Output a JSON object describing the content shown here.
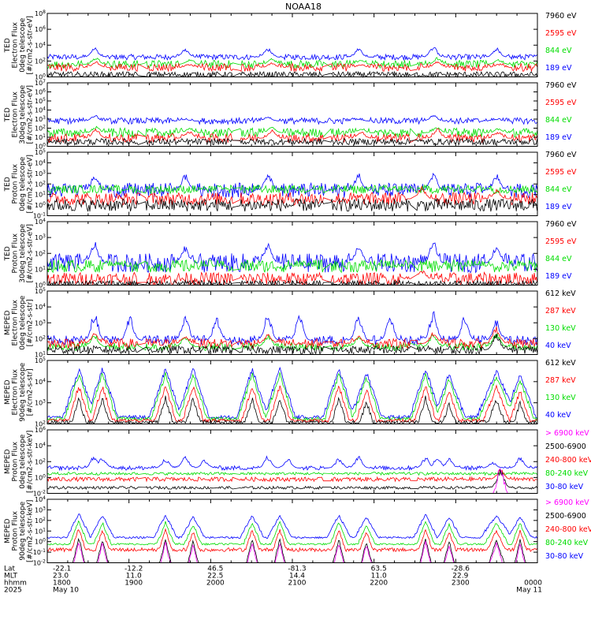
{
  "title": "NOAA18",
  "series_colors": {
    "blue": "#0000ff",
    "red": "#ff0000",
    "green": "#00dd00",
    "black": "#000000",
    "magenta": "#ff00ff"
  },
  "chart_data": [
    {
      "type": "line",
      "ylabel": [
        "TED",
        "Electron Flux",
        "0deg telescope",
        "[#/cm2-s-str-eV]"
      ],
      "yticks": [
        "10^0",
        "10^2",
        "10^4",
        "10^6",
        "10^8"
      ],
      "ylim": [
        0,
        8
      ],
      "legend": [
        {
          "label": "7960 eV",
          "color": "black"
        },
        {
          "label": "2595 eV",
          "color": "red"
        },
        {
          "label": "844 eV",
          "color": "green"
        },
        {
          "label": "189 eV",
          "color": "blue"
        }
      ],
      "series": [
        {
          "color": "blue",
          "base": 2.5,
          "noise": 0.35,
          "spikes": [
            [
              60,
              3.8
            ],
            [
              175,
              3.6
            ],
            [
              280,
              3.7
            ],
            [
              395,
              3.6
            ],
            [
              490,
              3.9
            ],
            [
              570,
              3.7
            ]
          ]
        },
        {
          "color": "green",
          "base": 1.6,
          "noise": 0.5,
          "spikes": [
            [
              62,
              2.5
            ],
            [
              180,
              2.2
            ],
            [
              285,
              2.4
            ],
            [
              398,
              2.2
            ],
            [
              495,
              2.5
            ],
            [
              572,
              2.2
            ]
          ]
        },
        {
          "color": "red",
          "base": 1.2,
          "noise": 0.5,
          "spikes": [
            [
              62,
              2.0
            ],
            [
              180,
              1.6
            ],
            [
              285,
              1.8
            ],
            [
              398,
              1.6
            ],
            [
              495,
              2.0
            ],
            [
              572,
              1.6
            ]
          ]
        },
        {
          "color": "black",
          "base": 0.3,
          "noise": 0.35,
          "spikes": []
        }
      ]
    },
    {
      "type": "line",
      "ylabel": [
        "TED",
        "Electron Flux",
        "30deg telescope",
        "[#/cm2-s-str-eV]"
      ],
      "yticks": [
        "10^0",
        "10^1",
        "10^2",
        "10^3",
        "10^4",
        "10^5",
        "10^6",
        "10^7"
      ],
      "ylim": [
        0,
        7
      ],
      "legend": [
        {
          "label": "7960 eV",
          "color": "black"
        },
        {
          "label": "2595 eV",
          "color": "red"
        },
        {
          "label": "844 eV",
          "color": "green"
        },
        {
          "label": "189 eV",
          "color": "blue"
        }
      ],
      "series": [
        {
          "color": "blue",
          "base": 2.8,
          "noise": 0.35,
          "spikes": [
            [
              60,
              3.5
            ],
            [
              175,
              3.0
            ],
            [
              280,
              3.3
            ],
            [
              395,
              3.0
            ],
            [
              490,
              3.5
            ],
            [
              570,
              3.0
            ]
          ]
        },
        {
          "color": "green",
          "base": 1.5,
          "noise": 0.5,
          "spikes": [
            [
              62,
              2.2
            ],
            [
              180,
              2.0
            ],
            [
              285,
              2.2
            ],
            [
              398,
              2.0
            ],
            [
              495,
              2.2
            ],
            [
              572,
              2.0
            ]
          ]
        },
        {
          "color": "red",
          "base": 0.9,
          "noise": 0.5,
          "spikes": [
            [
              62,
              2.0
            ],
            [
              180,
              1.8
            ],
            [
              285,
              1.9
            ],
            [
              398,
              1.7
            ],
            [
              495,
              2.0
            ],
            [
              572,
              1.7
            ]
          ]
        },
        {
          "color": "black",
          "base": 0.5,
          "noise": 0.35,
          "spikes": []
        }
      ]
    },
    {
      "type": "line",
      "ylabel": [
        "TED",
        "Proton Flux",
        "0deg telescope",
        "[#/cm2-s-str-eV]"
      ],
      "yticks": [
        "10^-1",
        "10^0",
        "10^1",
        "10^2",
        "10^3",
        "10^4",
        "10^5"
      ],
      "ylim": [
        -1,
        5
      ],
      "legend": [
        {
          "label": "7960 eV",
          "color": "black"
        },
        {
          "label": "2595 eV",
          "color": "red"
        },
        {
          "label": "844 eV",
          "color": "green"
        },
        {
          "label": "189 eV",
          "color": "blue"
        }
      ],
      "series": [
        {
          "color": "blue",
          "base": 1.4,
          "noise": 0.7,
          "spikes": [
            [
              60,
              3.0
            ],
            [
              175,
              3.0
            ],
            [
              280,
              3.2
            ],
            [
              395,
              3.1
            ],
            [
              490,
              3.2
            ],
            [
              570,
              3.0
            ]
          ]
        },
        {
          "color": "green",
          "base": 1.5,
          "noise": 0.4,
          "spikes": [
            [
              90,
              1.0
            ],
            [
              210,
              0.8
            ],
            [
              325,
              0.9
            ],
            [
              440,
              0.8
            ],
            [
              545,
              1.0
            ]
          ]
        },
        {
          "color": "red",
          "base": 0.6,
          "noise": 0.6,
          "spikes": [
            [
              475,
              1.8
            ],
            [
              570,
              1.5
            ]
          ]
        },
        {
          "color": "black",
          "base": 0.0,
          "noise": 0.6,
          "spikes": []
        }
      ]
    },
    {
      "type": "line",
      "ylabel": [
        "TED",
        "Proton Flux",
        "30deg telescope",
        "[#/cm2-s-str-eV]"
      ],
      "yticks": [
        "10^0",
        "10^1",
        "10^2",
        "10^3",
        "10^4"
      ],
      "ylim": [
        0,
        4
      ],
      "legend": [
        {
          "label": "7960 eV",
          "color": "black"
        },
        {
          "label": "2595 eV",
          "color": "red"
        },
        {
          "label": "844 eV",
          "color": "green"
        },
        {
          "label": "189 eV",
          "color": "blue"
        }
      ],
      "series": [
        {
          "color": "blue",
          "base": 1.4,
          "noise": 0.6,
          "spikes": [
            [
              60,
              2.8
            ],
            [
              175,
              2.5
            ],
            [
              280,
              2.7
            ],
            [
              395,
              2.6
            ],
            [
              490,
              2.8
            ],
            [
              570,
              2.6
            ]
          ]
        },
        {
          "color": "green",
          "base": 1.2,
          "noise": 0.4,
          "spikes": [
            [
              90,
              1.3
            ],
            [
              210,
              1.2
            ],
            [
              325,
              1.2
            ],
            [
              440,
              1.1
            ],
            [
              545,
              1.3
            ]
          ]
        },
        {
          "color": "red",
          "base": 0.4,
          "noise": 0.4,
          "spikes": [
            [
              475,
              1.0
            ]
          ]
        },
        {
          "color": "black",
          "base": 0.1,
          "noise": 0.2,
          "spikes": []
        }
      ]
    },
    {
      "type": "line",
      "ylabel": [
        "MEPED",
        "Electron Flux",
        "0deg telescope",
        "[#/cm2-s-str]"
      ],
      "yticks": [
        "10^1",
        "10^2",
        "10^3",
        "10^4",
        "10^5"
      ],
      "ylim": [
        1,
        5
      ],
      "legend": [
        {
          "label": "612 keV",
          "color": "black"
        },
        {
          "label": "287 keV",
          "color": "red"
        },
        {
          "label": "130 keV",
          "color": "green"
        },
        {
          "label": "40 keV",
          "color": "blue"
        }
      ],
      "series": [
        {
          "color": "blue",
          "base": 1.9,
          "noise": 0.3,
          "spikes": [
            [
              60,
              3.8
            ],
            [
              105,
              3.5
            ],
            [
              175,
              3.6
            ],
            [
              215,
              3.4
            ],
            [
              280,
              3.7
            ],
            [
              320,
              3.5
            ],
            [
              395,
              3.6
            ],
            [
              435,
              3.4
            ],
            [
              490,
              3.9
            ],
            [
              530,
              3.5
            ],
            [
              570,
              3.2
            ]
          ]
        },
        {
          "color": "green",
          "base": 1.5,
          "noise": 0.25,
          "spikes": [
            [
              60,
              2.3
            ],
            [
              175,
              2.2
            ],
            [
              280,
              2.3
            ],
            [
              395,
              2.2
            ],
            [
              490,
              2.4
            ],
            [
              570,
              2.4
            ]
          ]
        },
        {
          "color": "red",
          "base": 1.7,
          "noise": 0.3,
          "spikes": [
            [
              60,
              2.4
            ],
            [
              175,
              2.2
            ],
            [
              280,
              2.3
            ],
            [
              395,
              2.2
            ],
            [
              490,
              2.4
            ],
            [
              570,
              2.8
            ]
          ]
        },
        {
          "color": "black",
          "base": 1.3,
          "noise": 0.25,
          "spikes": [
            [
              570,
              2.4
            ]
          ]
        }
      ]
    },
    {
      "type": "line",
      "ylabel": [
        "MEPED",
        "Electron Flux",
        "90deg telescope",
        "[#/cm2-s-str]"
      ],
      "yticks": [
        "10^2",
        "10^3",
        "10^4",
        "10^5"
      ],
      "ylim": [
        1.8,
        5.5
      ],
      "legend": [
        {
          "label": "612 keV",
          "color": "black"
        },
        {
          "label": "287 keV",
          "color": "red"
        },
        {
          "label": "130 keV",
          "color": "green"
        },
        {
          "label": "40 keV",
          "color": "blue"
        }
      ],
      "humps": [
        [
          40,
          20,
          5.0
        ],
        [
          70,
          20,
          5.0
        ],
        [
          150,
          20,
          5.0
        ],
        [
          185,
          20,
          5.0
        ],
        [
          260,
          20,
          5.0
        ],
        [
          295,
          20,
          5.0
        ],
        [
          370,
          20,
          5.0
        ],
        [
          405,
          20,
          4.8
        ],
        [
          480,
          20,
          5.0
        ],
        [
          510,
          20,
          4.7
        ],
        [
          570,
          25,
          4.9
        ],
        [
          600,
          20,
          4.7
        ]
      ],
      "hump_offsets": {
        "blue": 0,
        "green": -0.3,
        "red": -1.0,
        "black": -1.7
      },
      "series": [
        {
          "color": "blue",
          "base": 2.2,
          "noise": 0.1,
          "spikes": []
        },
        {
          "color": "green",
          "base": 2.1,
          "noise": 0.1,
          "spikes": []
        },
        {
          "color": "red",
          "base": 2.0,
          "noise": 0.1,
          "spikes": []
        },
        {
          "color": "black",
          "base": 1.9,
          "noise": 0.1,
          "spikes": []
        }
      ]
    },
    {
      "type": "line",
      "ylabel": [
        "MEPED",
        "Proton Flux",
        "0deg telescope",
        "[#/cm2-s-str-keV]"
      ],
      "yticks": [
        "10^-2",
        "10^0",
        "10^2",
        "10^4",
        "10^6"
      ],
      "ylim": [
        -3,
        6
      ],
      "legend": [
        {
          "label": "> 6900 keV",
          "color": "magenta"
        },
        {
          "label": "2500-6900",
          "color": "black"
        },
        {
          "label": "240-800 keV",
          "color": "red"
        },
        {
          "label": "80-240 keV",
          "color": "green"
        },
        {
          "label": "30-80 keV",
          "color": "blue"
        }
      ],
      "series": [
        {
          "color": "blue",
          "base": 0.6,
          "noise": 0.3,
          "spikes": [
            [
              60,
              2.5
            ],
            [
              70,
              2.2
            ],
            [
              150,
              2.0
            ],
            [
              175,
              2.3
            ],
            [
              200,
              1.8
            ],
            [
              280,
              2.4
            ],
            [
              305,
              2.0
            ],
            [
              370,
              2.0
            ],
            [
              395,
              2.3
            ],
            [
              480,
              2.2
            ],
            [
              495,
              2.3
            ],
            [
              510,
              2.0
            ],
            [
              565,
              1.5
            ],
            [
              600,
              2.1
            ]
          ]
        },
        {
          "color": "green",
          "base": -0.2,
          "noise": 0.2,
          "spikes": []
        },
        {
          "color": "red",
          "base": -1.0,
          "noise": 0.3,
          "spikes": [
            [
              575,
              0.5
            ]
          ]
        },
        {
          "color": "black",
          "base": -2.2,
          "noise": 0.2,
          "spikes": [
            [
              575,
              0.5
            ]
          ]
        },
        {
          "color": "magenta",
          "base": -3.5,
          "noise": 0.1,
          "spikes": [
            [
              575,
              1.4
            ]
          ]
        }
      ]
    },
    {
      "type": "line",
      "ylabel": [
        "MEPED",
        "Proton Flux",
        "90deg telescope",
        "[#/cm2-s-str-keV]"
      ],
      "yticks": [
        "10^-2",
        "10^-1",
        "10^0",
        "10^1",
        "10^2",
        "10^3",
        "10^4"
      ],
      "ylim": [
        -2.3,
        4.5
      ],
      "legend": [
        {
          "label": "> 6900 keV",
          "color": "magenta"
        },
        {
          "label": "2500-6900",
          "color": "black"
        },
        {
          "label": "240-800 keV",
          "color": "red"
        },
        {
          "label": "80-240 keV",
          "color": "green"
        },
        {
          "label": "30-80 keV",
          "color": "blue"
        }
      ],
      "humps": [
        [
          40,
          15,
          3.0
        ],
        [
          70,
          15,
          2.8
        ],
        [
          150,
          15,
          2.8
        ],
        [
          185,
          15,
          2.6
        ],
        [
          260,
          15,
          2.8
        ],
        [
          295,
          15,
          2.8
        ],
        [
          370,
          15,
          2.8
        ],
        [
          405,
          15,
          2.6
        ],
        [
          480,
          15,
          2.9
        ],
        [
          510,
          15,
          2.6
        ],
        [
          570,
          20,
          2.8
        ],
        [
          600,
          15,
          2.7
        ]
      ],
      "hump_offsets": {
        "blue": 0,
        "green": -0.8,
        "red": -1.6,
        "black": -2.6,
        "magenta": -3.0
      },
      "series": [
        {
          "color": "blue",
          "base": 0.4,
          "noise": 0.1,
          "spikes": []
        },
        {
          "color": "green",
          "base": -0.3,
          "noise": 0.1,
          "spikes": []
        },
        {
          "color": "red",
          "base": -0.9,
          "noise": 0.2,
          "spikes": []
        },
        {
          "color": "black",
          "base": -2.5,
          "noise": 0.1,
          "spikes": []
        },
        {
          "color": "magenta",
          "base": -2.5,
          "noise": 0.1,
          "spikes": []
        }
      ]
    }
  ],
  "x_axis": {
    "row_labels": [
      "Lat",
      "MLT",
      "hhmm",
      "2025"
    ],
    "ticks": [
      {
        "lat": "-22.1",
        "mlt": "23.0",
        "hhmm": "1800",
        "date": "May 10"
      },
      {
        "lat": "-12.2",
        "mlt": "11.0",
        "hhmm": "1900",
        "date": ""
      },
      {
        "lat": "46.5",
        "mlt": "22.5",
        "hhmm": "2000",
        "date": ""
      },
      {
        "lat": "-81.3",
        "mlt": "14.4",
        "hhmm": "2100",
        "date": ""
      },
      {
        "lat": "63.5",
        "mlt": "11.0",
        "hhmm": "2200",
        "date": ""
      },
      {
        "lat": "-28.6",
        "mlt": "22.9",
        "hhmm": "2300",
        "date": ""
      },
      {
        "lat": "",
        "mlt": "",
        "hhmm": "0000",
        "date": "May 11"
      }
    ]
  }
}
